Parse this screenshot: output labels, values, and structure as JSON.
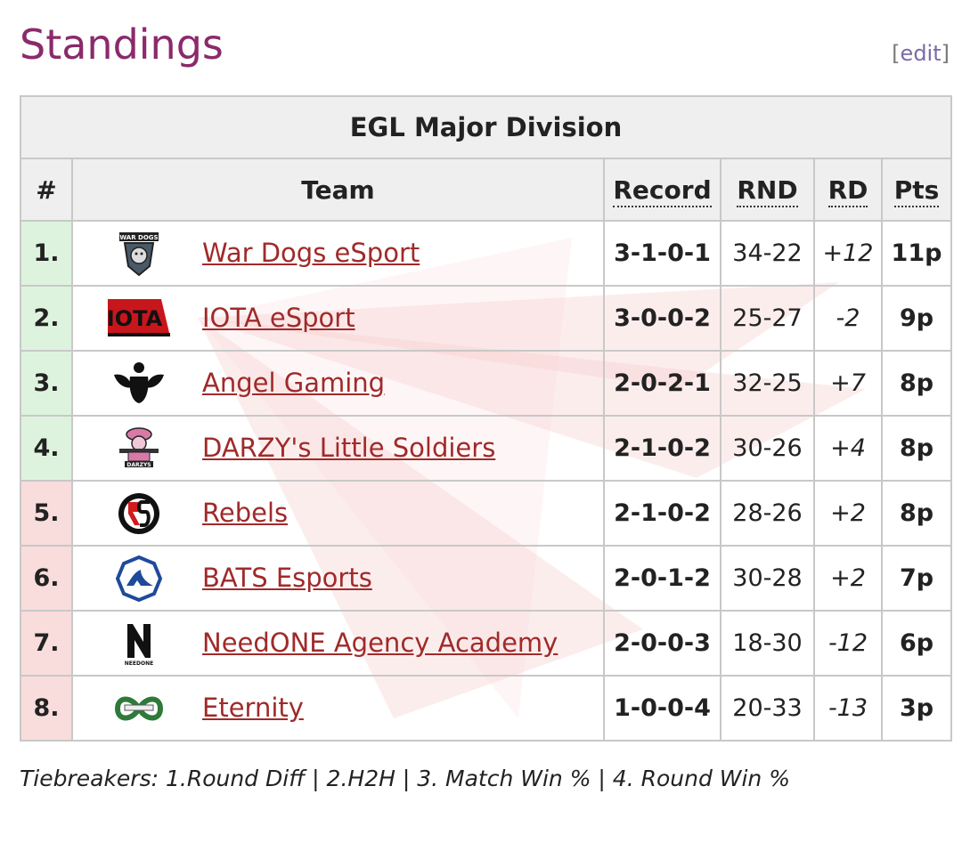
{
  "page": {
    "heading": "Standings",
    "edit_open": "[",
    "edit_label": "edit",
    "edit_close": "]"
  },
  "table": {
    "caption": "EGL Major Division",
    "columns": {
      "rank": "#",
      "team": "Team",
      "record": "Record",
      "rnd": "RND",
      "rd": "RD",
      "pts": "Pts"
    },
    "rows": [
      {
        "rank": "1.",
        "team": "War Dogs eSport",
        "logo": "war-dogs-logo",
        "record": "3-1-0-1",
        "rnd": "34-22",
        "rd": "+12",
        "pts": "11p",
        "status": "qualified"
      },
      {
        "rank": "2.",
        "team": "IOTA eSport",
        "logo": "iota-logo",
        "record": "3-0-0-2",
        "rnd": "25-27",
        "rd": "-2",
        "pts": "9p",
        "status": "qualified"
      },
      {
        "rank": "3.",
        "team": "Angel Gaming",
        "logo": "angel-gaming-logo",
        "record": "2-0-2-1",
        "rnd": "32-25",
        "rd": "+7",
        "pts": "8p",
        "status": "qualified"
      },
      {
        "rank": "4.",
        "team": "DARZY's Little Soldiers",
        "logo": "darzys-logo",
        "record": "2-1-0-2",
        "rnd": "30-26",
        "rd": "+4",
        "pts": "8p",
        "status": "qualified"
      },
      {
        "rank": "5.",
        "team": "Rebels",
        "logo": "rebels-logo",
        "record": "2-1-0-2",
        "rnd": "28-26",
        "rd": "+2",
        "pts": "8p",
        "status": "relegation"
      },
      {
        "rank": "6.",
        "team": "BATS Esports",
        "logo": "bats-logo",
        "record": "2-0-1-2",
        "rnd": "30-28",
        "rd": "+2",
        "pts": "7p",
        "status": "relegation"
      },
      {
        "rank": "7.",
        "team": "NeedONE Agency Academy",
        "logo": "needone-logo",
        "record": "2-0-0-3",
        "rnd": "18-30",
        "rd": "-12",
        "pts": "6p",
        "status": "relegation"
      },
      {
        "rank": "8.",
        "team": "Eternity",
        "logo": "eternity-logo",
        "record": "1-0-0-4",
        "rnd": "20-33",
        "rd": "-13",
        "pts": "3p",
        "status": "relegation"
      }
    ]
  },
  "logo_text": {
    "war_dogs": "WAR DOGS",
    "iota": "IOTA",
    "darzys": "DARZYS",
    "needone": "NEEDONE"
  },
  "footer": {
    "tiebreakers": "Tiebreakers: 1.Round Diff | 2.H2H | 3. Match Win % | 4. Round Win %"
  },
  "colors": {
    "heading": "#8b2a6a",
    "team_link": "#a02a2a",
    "qualified_bg": "#def3de",
    "relegation_bg": "#f9dcdc",
    "header_bg": "#efefef"
  }
}
